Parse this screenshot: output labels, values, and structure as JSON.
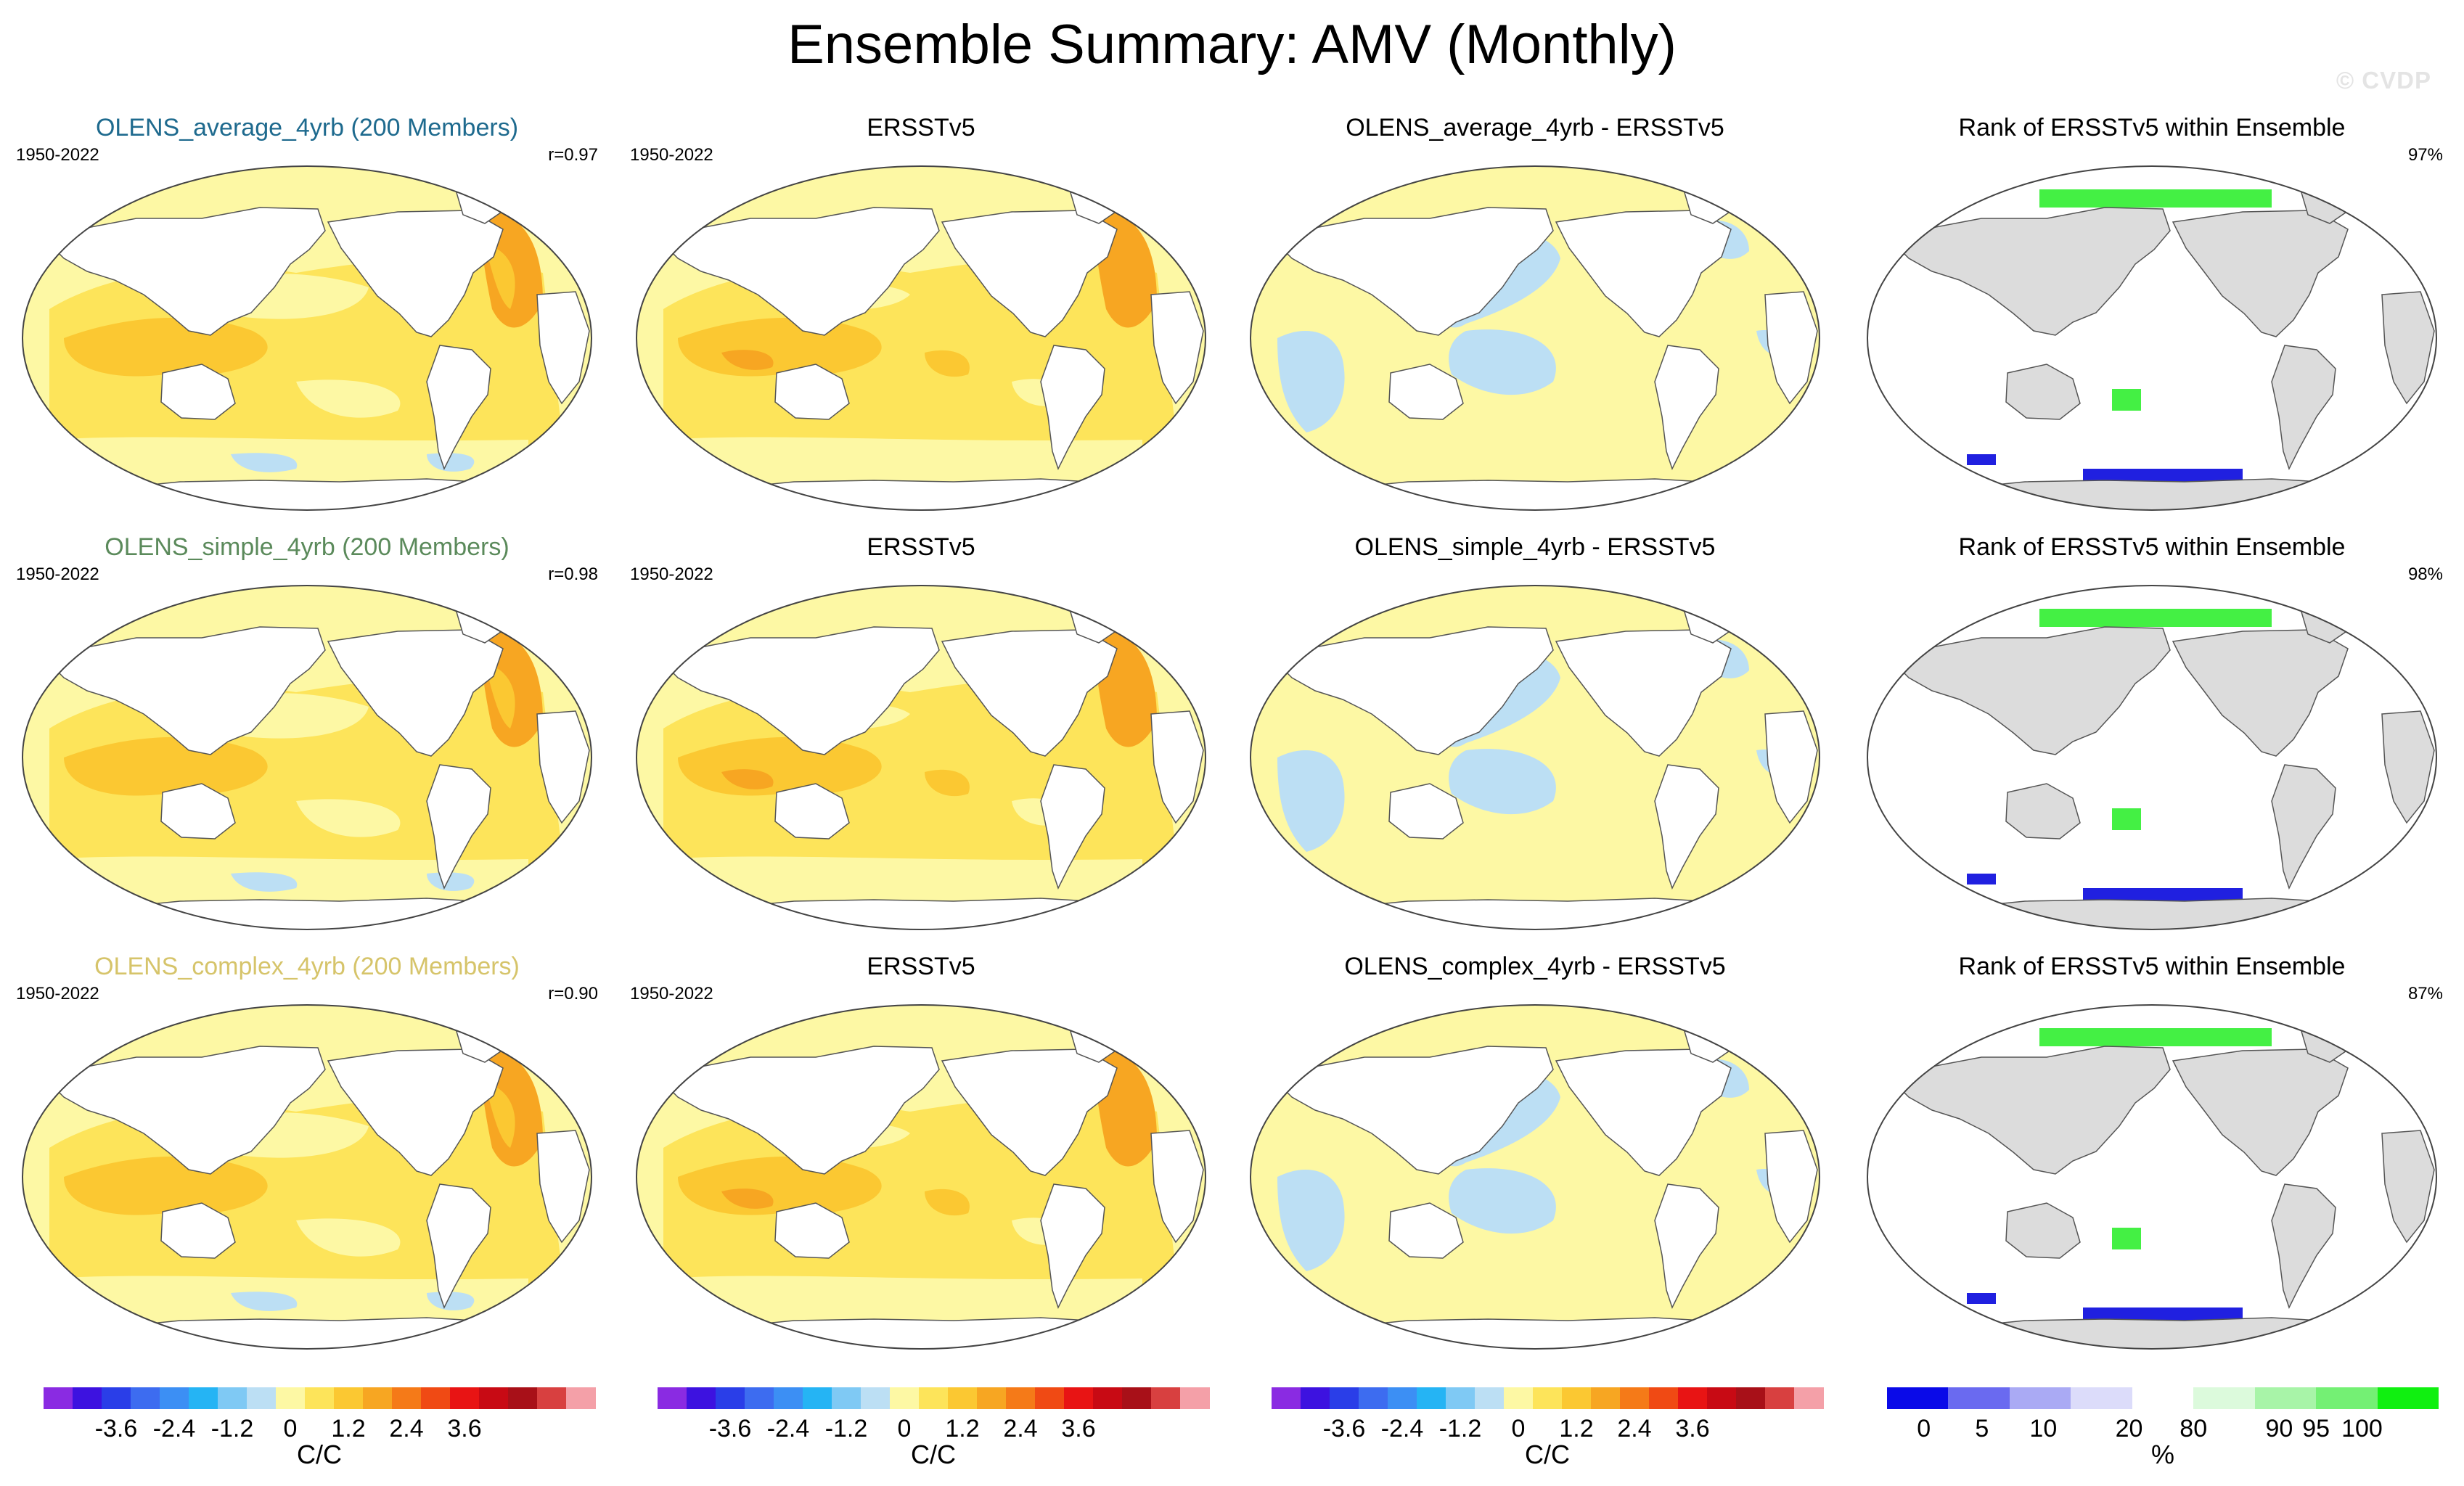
{
  "title": "Ensemble Summary: AMV (Monthly)",
  "watermark": "© CVDP",
  "colors": {
    "land": "#dcdcdc",
    "ocean_white": "#ffffff",
    "yellow_light": "#fdf8a4",
    "yellow": "#fde45a",
    "orange_light": "#fbc832",
    "orange": "#f7a622",
    "blue_light": "#bcdff4",
    "rank_green": "#44f044",
    "rank_blue": "#2020e0"
  },
  "panels": [
    {
      "title": "OLENS_average_4yrb (200 Members)",
      "title_color": "#1e6a8e",
      "period": "1950-2022",
      "stat": "r=0.97",
      "kind": "model"
    },
    {
      "title": "ERSSTv5",
      "title_color": "#000000",
      "period": "1950-2022",
      "stat": "",
      "kind": "obs"
    },
    {
      "title": "OLENS_average_4yrb - ERSSTv5",
      "title_color": "#000000",
      "period": "",
      "stat": "",
      "kind": "diff"
    },
    {
      "title": "Rank of ERSSTv5 within Ensemble",
      "title_color": "#000000",
      "period": "",
      "stat": "97%",
      "kind": "rank"
    },
    {
      "title": "OLENS_simple_4yrb (200 Members)",
      "title_color": "#5b8a5b",
      "period": "1950-2022",
      "stat": "r=0.98",
      "kind": "model"
    },
    {
      "title": "ERSSTv5",
      "title_color": "#000000",
      "period": "1950-2022",
      "stat": "",
      "kind": "obs"
    },
    {
      "title": "OLENS_simple_4yrb - ERSSTv5",
      "title_color": "#000000",
      "period": "",
      "stat": "",
      "kind": "diff"
    },
    {
      "title": "Rank of ERSSTv5 within Ensemble",
      "title_color": "#000000",
      "period": "",
      "stat": "98%",
      "kind": "rank"
    },
    {
      "title": "OLENS_complex_4yrb (200 Members)",
      "title_color": "#d6c46a",
      "period": "1950-2022",
      "stat": "r=0.90",
      "kind": "model"
    },
    {
      "title": "ERSSTv5",
      "title_color": "#000000",
      "period": "1950-2022",
      "stat": "",
      "kind": "obs"
    },
    {
      "title": "OLENS_complex_4yrb - ERSSTv5",
      "title_color": "#000000",
      "period": "",
      "stat": "",
      "kind": "diff"
    },
    {
      "title": "Rank of ERSSTv5 within Ensemble",
      "title_color": "#000000",
      "period": "",
      "stat": "87%",
      "kind": "rank"
    }
  ],
  "colorbars": [
    {
      "units": "C/C",
      "labels": [
        "-3.6",
        "-2.4",
        "-1.2",
        "0",
        "1.2",
        "2.4",
        "3.6"
      ],
      "kind": "sst"
    },
    {
      "units": "C/C",
      "labels": [
        "-3.6",
        "-2.4",
        "-1.2",
        "0",
        "1.2",
        "2.4",
        "3.6"
      ],
      "kind": "sst"
    },
    {
      "units": "C/C",
      "labels": [
        "-3.6",
        "-2.4",
        "-1.2",
        "0",
        "1.2",
        "2.4",
        "3.6"
      ],
      "kind": "sst"
    },
    {
      "units": "%",
      "labels": [
        "0",
        "5",
        "10",
        "20",
        "80",
        "90",
        "95",
        "100"
      ],
      "kind": "rank"
    }
  ],
  "sst_palette": [
    "#8a2be2",
    "#3d12e0",
    "#2a3ee8",
    "#3d6cf0",
    "#3c8ff4",
    "#25b4f4",
    "#7fc9f4",
    "#bcdff4",
    "#fdf8a4",
    "#fde45a",
    "#fbc832",
    "#f7a622",
    "#f57a18",
    "#f04a14",
    "#e81414",
    "#c80a14",
    "#a81018",
    "#d84040",
    "#f4a0a8"
  ],
  "rank_palette": [
    "#0a0ae8",
    "#6a6af0",
    "#aaaaf4",
    "#dcdcfa",
    "#ffffff",
    "#dcfadc",
    "#a8f4a8",
    "#74f074",
    "#10f010"
  ]
}
